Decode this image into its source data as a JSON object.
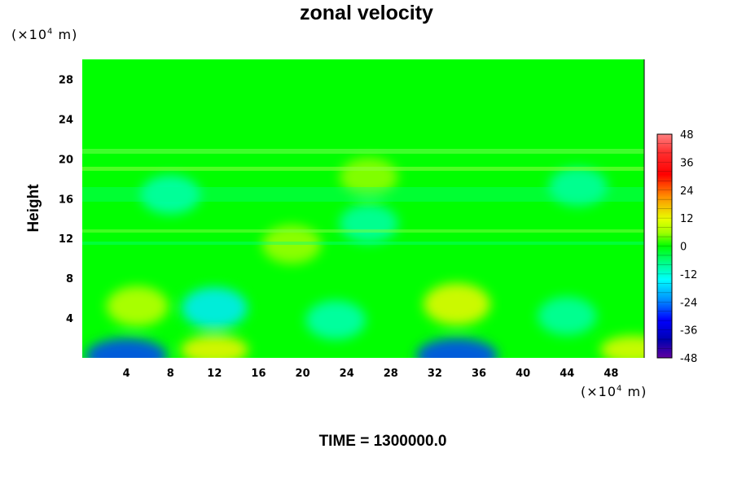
{
  "chart_data": {
    "type": "heatmap",
    "title": "zonal velocity",
    "ylabel": "Height",
    "xunit_prefix": "(×10",
    "xunit_exp": "4",
    "xunit_suffix": " m)",
    "yunit_prefix": "(×10",
    "yunit_exp": "4",
    "yunit_suffix": " m)",
    "footer": "TIME = 1300000.0",
    "xlim": [
      0,
      51
    ],
    "ylim": [
      0,
      30
    ],
    "xticks": [
      4,
      8,
      12,
      16,
      20,
      24,
      28,
      32,
      36,
      40,
      44,
      48
    ],
    "yticks": [
      4,
      8,
      12,
      16,
      20,
      24,
      28
    ],
    "colorbar": {
      "range": [
        -48,
        48
      ],
      "ticks": [
        48,
        36,
        24,
        12,
        0,
        -12,
        -24,
        -36,
        -48
      ]
    },
    "features": [
      {
        "x": 4,
        "y": 0.2,
        "value": -30
      },
      {
        "x": 34,
        "y": 0.2,
        "value": -30
      },
      {
        "x": 12,
        "y": 0.8,
        "value": 16
      },
      {
        "x": 50,
        "y": 0.8,
        "value": 14
      },
      {
        "x": 5,
        "y": 5.2,
        "value": 10
      },
      {
        "x": 34,
        "y": 5.4,
        "value": 15
      },
      {
        "x": 12,
        "y": 5,
        "value": -14
      },
      {
        "x": 23,
        "y": 3.8,
        "value": -8
      },
      {
        "x": 44,
        "y": 4.2,
        "value": -7
      },
      {
        "x": 19,
        "y": 11.4,
        "value": 7
      },
      {
        "x": 26,
        "y": 13.5,
        "value": -7
      },
      {
        "x": 8,
        "y": 16.4,
        "value": -8
      },
      {
        "x": 26,
        "y": 18.2,
        "value": 6
      },
      {
        "x": 45,
        "y": 17.2,
        "value": -7
      }
    ]
  },
  "colors": {
    "background_field": "#00ff00",
    "frame": "#000000"
  }
}
